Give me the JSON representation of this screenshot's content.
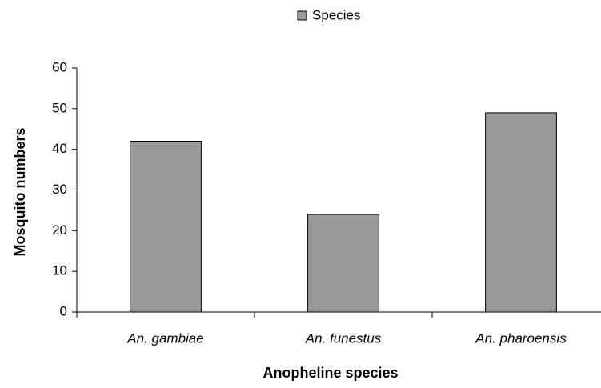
{
  "chart_data": {
    "type": "bar",
    "x_label": "Anopheline species",
    "y_label": "Mosquito numbers",
    "categories": [
      "An. gambiae",
      "An. funestus",
      "An. pharoensis"
    ],
    "series": [
      {
        "name": "Species",
        "color": "#999999",
        "values": [
          42,
          24,
          49
        ]
      }
    ],
    "ylim": [
      0,
      60
    ],
    "yticks": [
      0,
      10,
      20,
      30,
      40,
      50,
      60
    ],
    "legend": "top",
    "grid": false
  }
}
